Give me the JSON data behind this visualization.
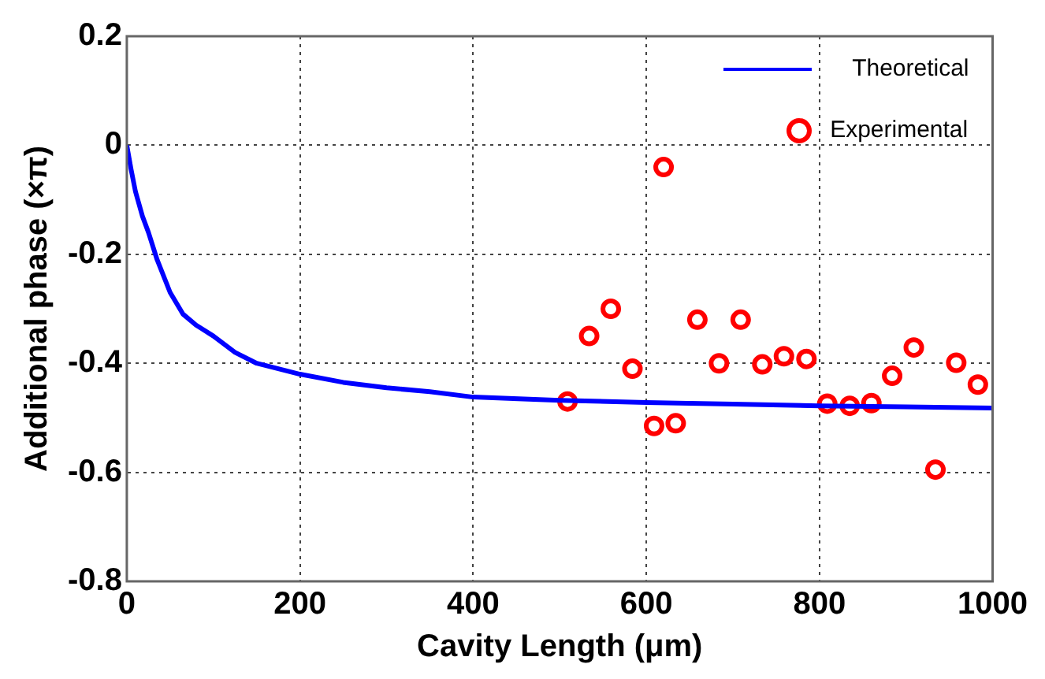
{
  "chart_data": {
    "type": "line",
    "xlabel": "Cavity Length (μm)",
    "ylabel": "Additional phase (×π)",
    "xlim": [
      0,
      1000
    ],
    "xticks": [
      0,
      200,
      400,
      600,
      800,
      1000
    ],
    "ylim": [
      -0.8,
      0.2
    ],
    "yticks": [
      -0.8,
      -0.6,
      -0.4,
      -0.2,
      0,
      0.2
    ],
    "grid": true,
    "legend": "top right",
    "series": [
      {
        "name": "Theoretical",
        "type": "line",
        "color": "#0000ff",
        "marker": "none",
        "line_style": "solid",
        "x": [
          0,
          5,
          10,
          18,
          25,
          35,
          50,
          65,
          80,
          100,
          125,
          150,
          175,
          200,
          250,
          300,
          350,
          400,
          500,
          600,
          700,
          800,
          900,
          1000
        ],
        "values": [
          0,
          -0.045,
          -0.085,
          -0.13,
          -0.16,
          -0.21,
          -0.27,
          -0.31,
          -0.33,
          -0.35,
          -0.38,
          -0.4,
          -0.41,
          -0.42,
          -0.435,
          -0.445,
          -0.452,
          -0.462,
          -0.468,
          -0.472,
          -0.475,
          -0.478,
          -0.48,
          -0.482
        ]
      },
      {
        "name": "Experimental",
        "type": "scatter",
        "color": "#ff0000",
        "marker": "circle",
        "x": [
          509,
          534,
          559,
          584,
          609,
          620,
          634,
          659,
          684,
          709,
          734,
          759,
          785,
          809,
          835,
          860,
          884,
          909,
          934,
          958,
          983
        ],
        "values": [
          -0.47,
          -0.35,
          -0.3,
          -0.41,
          -0.515,
          -0.04,
          -0.51,
          -0.32,
          -0.4,
          -0.32,
          -0.402,
          -0.387,
          -0.392,
          -0.474,
          -0.478,
          -0.473,
          -0.423,
          -0.371,
          -0.595,
          -0.399,
          -0.439
        ]
      }
    ]
  }
}
